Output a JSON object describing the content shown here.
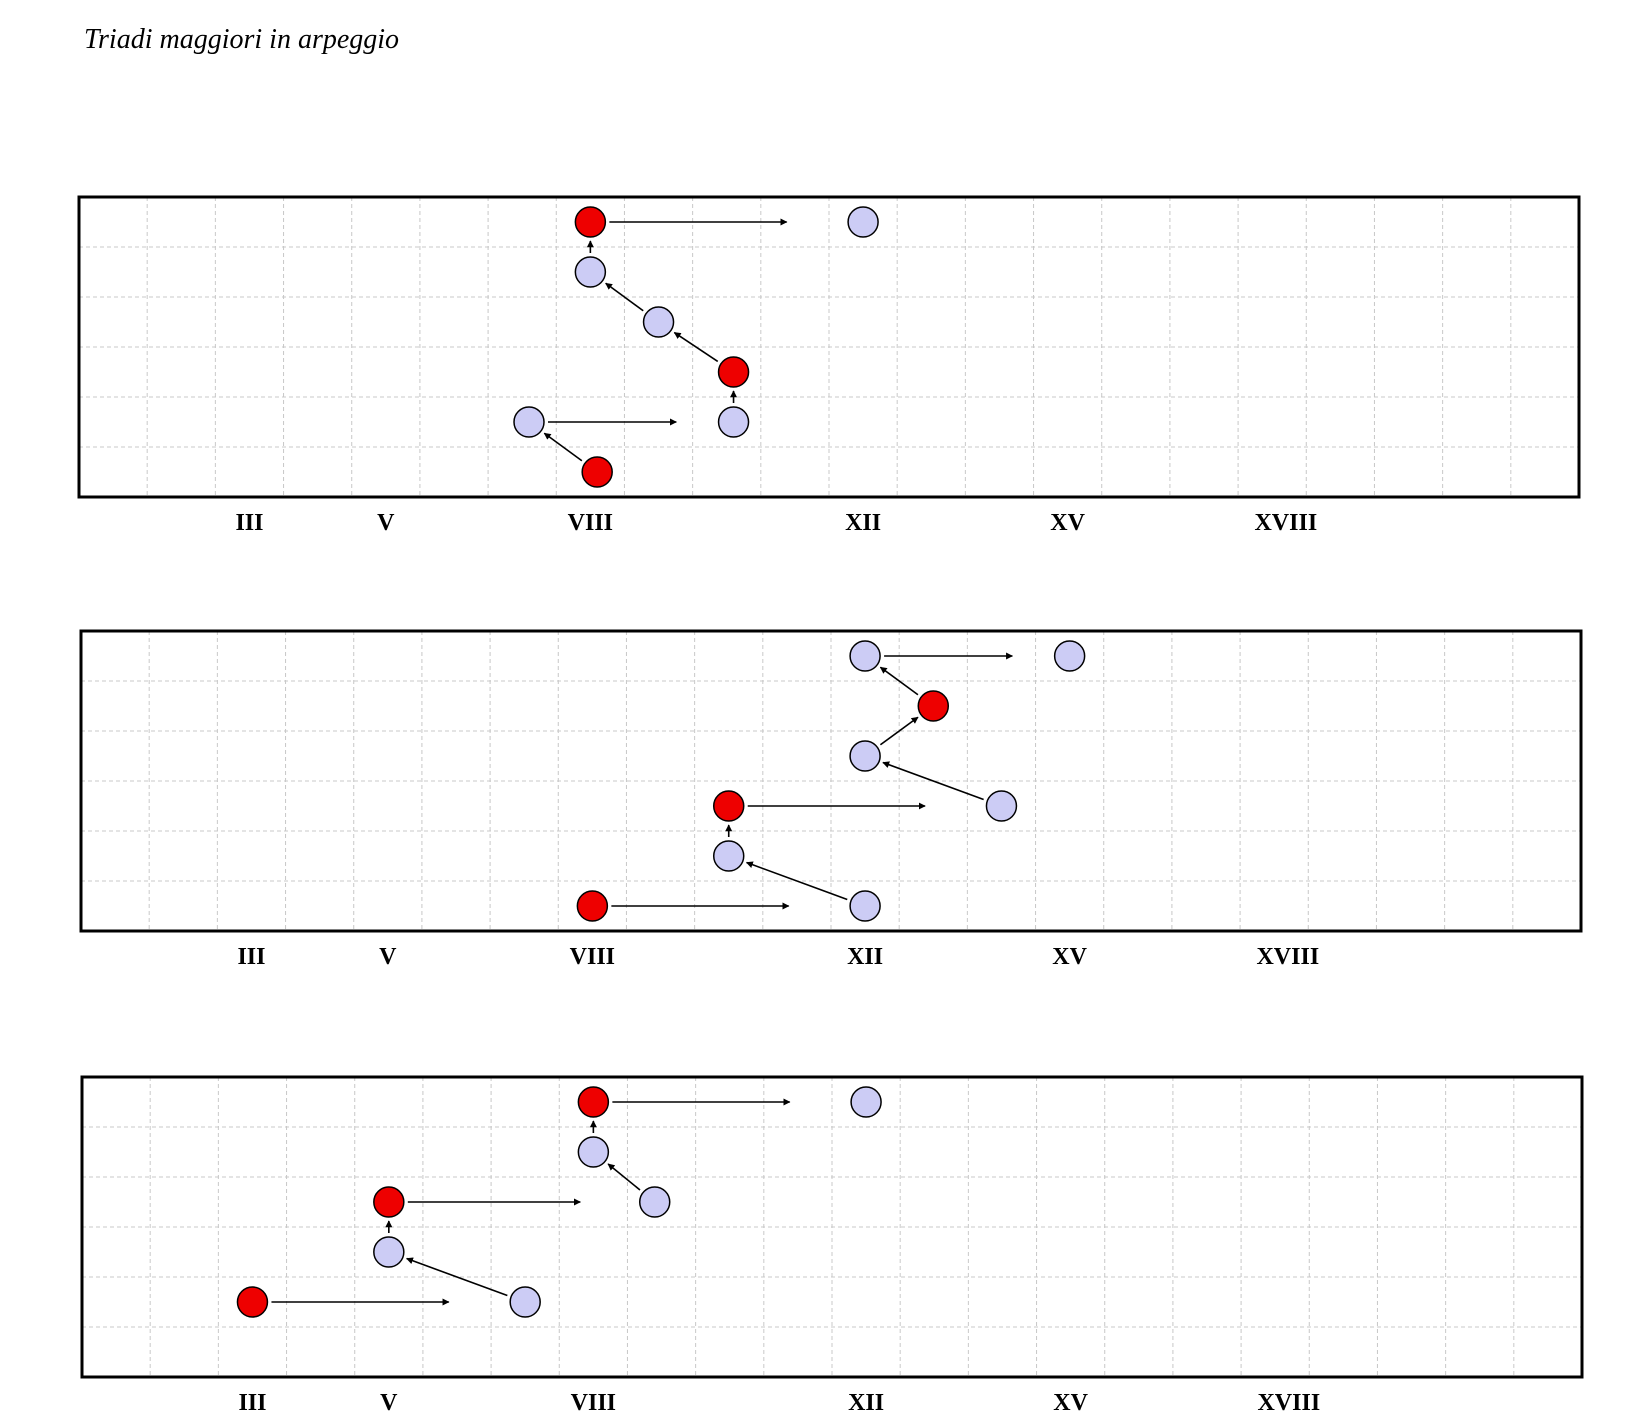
{
  "title": "Triadi maggiori in arpeggio",
  "colors": {
    "root": "#ee0000",
    "other": "#ccccf5",
    "grid": "#c8c8c8",
    "border": "#000000",
    "arrow": "#000000"
  },
  "fret_labels": [
    {
      "text": "III",
      "fret": 2.5
    },
    {
      "text": "V",
      "fret": 4.5
    },
    {
      "text": "VIII",
      "fret": 7.5
    },
    {
      "text": "XII",
      "fret": 11.5
    },
    {
      "text": "XV",
      "fret": 14.5
    },
    {
      "text": "XVIII",
      "fret": 17.7
    }
  ],
  "diagrams": [
    {
      "notes": [
        {
          "string": 1,
          "fret": 7.5,
          "type": "root"
        },
        {
          "string": 1,
          "fret": 11.5,
          "type": "other"
        },
        {
          "string": 2,
          "fret": 7.5,
          "type": "other"
        },
        {
          "string": 3,
          "fret": 8.5,
          "type": "other"
        },
        {
          "string": 4,
          "fret": 9.6,
          "type": "root"
        },
        {
          "string": 5,
          "fret": 6.6,
          "type": "other"
        },
        {
          "string": 5,
          "fret": 9.6,
          "type": "other"
        },
        {
          "string": 6,
          "fret": 7.6,
          "type": "root"
        }
      ],
      "arrows": [
        {
          "from": [
            6,
            7.6
          ],
          "to": [
            5,
            6.6
          ]
        },
        {
          "from": [
            5,
            6.6
          ],
          "to": [
            5,
            9.6
          ]
        },
        {
          "from": [
            5,
            9.6
          ],
          "to": [
            4,
            9.6
          ]
        },
        {
          "from": [
            4,
            9.6
          ],
          "to": [
            3,
            8.5
          ]
        },
        {
          "from": [
            3,
            8.5
          ],
          "to": [
            2,
            7.5
          ]
        },
        {
          "from": [
            2,
            7.5
          ],
          "to": [
            1,
            7.5
          ]
        },
        {
          "from": [
            1,
            7.5
          ],
          "to": [
            1,
            11.5
          ]
        }
      ]
    },
    {
      "notes": [
        {
          "string": 1,
          "fret": 11.5,
          "type": "other"
        },
        {
          "string": 1,
          "fret": 14.5,
          "type": "other"
        },
        {
          "string": 2,
          "fret": 12.5,
          "type": "root"
        },
        {
          "string": 3,
          "fret": 11.5,
          "type": "other"
        },
        {
          "string": 4,
          "fret": 9.5,
          "type": "root"
        },
        {
          "string": 4,
          "fret": 13.5,
          "type": "other"
        },
        {
          "string": 5,
          "fret": 9.5,
          "type": "other"
        },
        {
          "string": 6,
          "fret": 7.5,
          "type": "root"
        },
        {
          "string": 6,
          "fret": 11.5,
          "type": "other"
        }
      ],
      "arrows": [
        {
          "from": [
            6,
            7.5
          ],
          "to": [
            6,
            11.5
          ]
        },
        {
          "from": [
            6,
            11.5
          ],
          "to": [
            5,
            9.5
          ]
        },
        {
          "from": [
            5,
            9.5
          ],
          "to": [
            4,
            9.5
          ]
        },
        {
          "from": [
            4,
            9.5
          ],
          "to": [
            4,
            13.5
          ]
        },
        {
          "from": [
            4,
            13.5
          ],
          "to": [
            3,
            11.5
          ]
        },
        {
          "from": [
            3,
            11.5
          ],
          "to": [
            2,
            12.5
          ]
        },
        {
          "from": [
            2,
            12.5
          ],
          "to": [
            1,
            11.5
          ]
        },
        {
          "from": [
            1,
            11.5
          ],
          "to": [
            1,
            14.5
          ]
        }
      ]
    },
    {
      "notes": [
        {
          "string": 1,
          "fret": 7.5,
          "type": "root"
        },
        {
          "string": 1,
          "fret": 11.5,
          "type": "other"
        },
        {
          "string": 2,
          "fret": 7.5,
          "type": "other"
        },
        {
          "string": 3,
          "fret": 4.5,
          "type": "root"
        },
        {
          "string": 3,
          "fret": 8.4,
          "type": "other"
        },
        {
          "string": 4,
          "fret": 4.5,
          "type": "other"
        },
        {
          "string": 5,
          "fret": 2.5,
          "type": "root"
        },
        {
          "string": 5,
          "fret": 6.5,
          "type": "other"
        }
      ],
      "arrows": [
        {
          "from": [
            5,
            2.5
          ],
          "to": [
            5,
            6.5
          ]
        },
        {
          "from": [
            5,
            6.5
          ],
          "to": [
            4,
            4.5
          ]
        },
        {
          "from": [
            4,
            4.5
          ],
          "to": [
            3,
            4.5
          ]
        },
        {
          "from": [
            3,
            4.5
          ],
          "to": [
            3,
            8.4
          ]
        },
        {
          "from": [
            3,
            8.4
          ],
          "to": [
            2,
            7.5
          ]
        },
        {
          "from": [
            2,
            7.5
          ],
          "to": [
            1,
            7.5
          ]
        },
        {
          "from": [
            1,
            7.5
          ],
          "to": [
            1,
            11.5
          ]
        }
      ]
    }
  ]
}
